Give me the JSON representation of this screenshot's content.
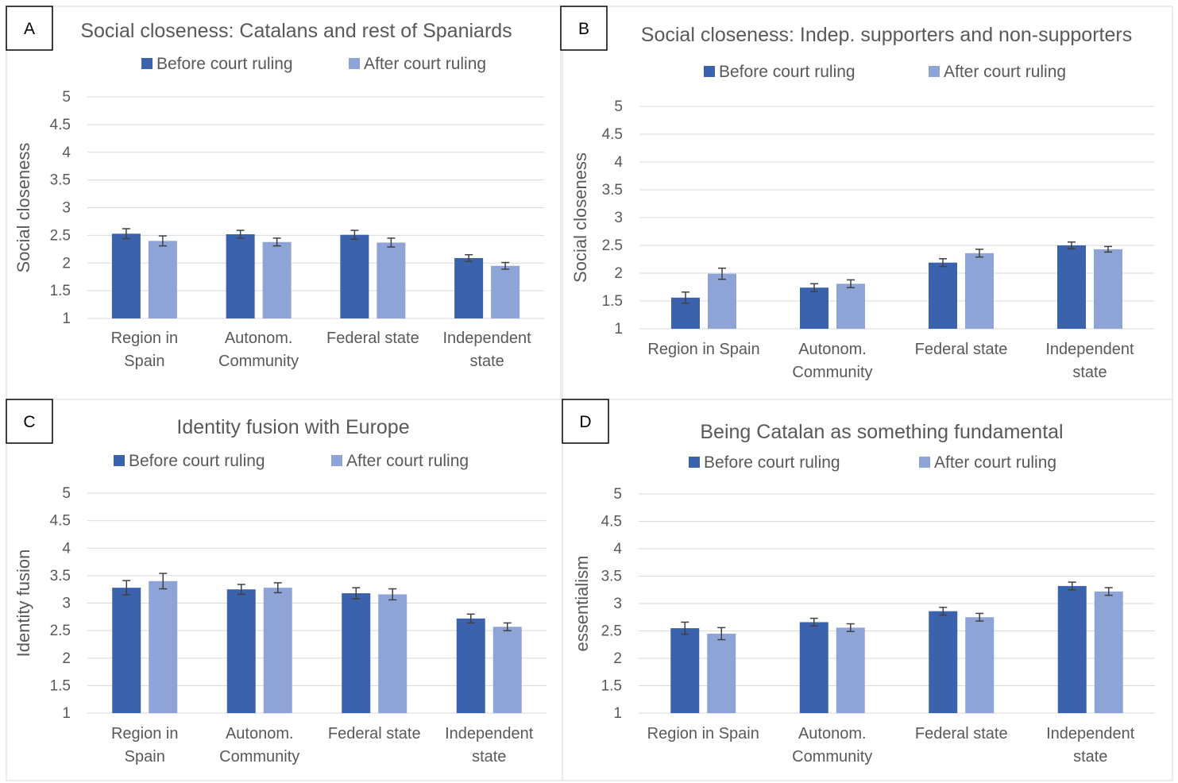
{
  "colors": {
    "before": "#3b62ad",
    "after": "#8ea4d6",
    "grid": "#d9d9d9",
    "text": "#595959",
    "error": "#404040"
  },
  "chart_data": [
    {
      "panel": "A",
      "type": "bar",
      "title": "Social closeness: Catalans and rest of Spaniards",
      "ylabel": "Social closeness",
      "xlabel": "",
      "ylim": [
        1,
        5
      ],
      "yticks": [
        "1",
        "1.5",
        "2",
        "2.5",
        "3",
        "3.5",
        "4",
        "4.5",
        "5"
      ],
      "grid": true,
      "legend_position": "top",
      "categories": [
        [
          "Region in",
          "Spain"
        ],
        [
          "Autonom.",
          "Community"
        ],
        [
          "Federal state"
        ],
        [
          "Independent",
          "state"
        ]
      ],
      "series": [
        {
          "name": "Before court ruling",
          "values": [
            2.53,
            2.52,
            2.51,
            2.09
          ],
          "errors": [
            0.09,
            0.07,
            0.08,
            0.06
          ]
        },
        {
          "name": "After court ruling",
          "values": [
            2.4,
            2.38,
            2.37,
            1.95
          ],
          "errors": [
            0.09,
            0.07,
            0.08,
            0.06
          ]
        }
      ]
    },
    {
      "panel": "B",
      "type": "bar",
      "title": "Social closeness: Indep. supporters and non-supporters",
      "ylabel": "Social closeness",
      "xlabel": "",
      "ylim": [
        1,
        5
      ],
      "yticks": [
        "1",
        "1.5",
        "2",
        "2.5",
        "3",
        "3.5",
        "4",
        "4.5",
        "5"
      ],
      "grid": true,
      "legend_position": "top",
      "categories": [
        [
          "Region in Spain"
        ],
        [
          "Autonom.",
          "Community"
        ],
        [
          "Federal state"
        ],
        [
          "Independent",
          "state"
        ]
      ],
      "series": [
        {
          "name": "Before court ruling",
          "values": [
            1.56,
            1.74,
            2.19,
            2.5
          ],
          "errors": [
            0.1,
            0.07,
            0.07,
            0.06
          ]
        },
        {
          "name": "After court ruling",
          "values": [
            1.99,
            1.81,
            2.36,
            2.43
          ],
          "errors": [
            0.1,
            0.07,
            0.07,
            0.05
          ]
        }
      ]
    },
    {
      "panel": "C",
      "type": "bar",
      "title": "Identity fusion with Europe",
      "ylabel": "Identity fusion",
      "xlabel": "",
      "ylim": [
        1,
        5
      ],
      "yticks": [
        "1",
        "1.5",
        "2",
        "2.5",
        "3",
        "3.5",
        "4",
        "4.5",
        "5"
      ],
      "grid": true,
      "legend_position": "top",
      "categories": [
        [
          "Region in",
          "Spain"
        ],
        [
          "Autonom.",
          "Community"
        ],
        [
          "Federal state"
        ],
        [
          "Independent",
          "state"
        ]
      ],
      "series": [
        {
          "name": "Before court ruling",
          "values": [
            3.28,
            3.25,
            3.18,
            2.72
          ],
          "errors": [
            0.13,
            0.09,
            0.1,
            0.08
          ]
        },
        {
          "name": "After court ruling",
          "values": [
            3.4,
            3.28,
            3.16,
            2.57
          ],
          "errors": [
            0.14,
            0.09,
            0.1,
            0.07
          ]
        }
      ]
    },
    {
      "panel": "D",
      "type": "bar",
      "title": "Being Catalan as something fundamental",
      "ylabel": "essentialism",
      "xlabel": "",
      "ylim": [
        1,
        5
      ],
      "yticks": [
        "1",
        "1.5",
        "2",
        "2.5",
        "3",
        "3.5",
        "4",
        "4.5",
        "5"
      ],
      "grid": true,
      "legend_position": "top",
      "categories": [
        [
          "Region in Spain"
        ],
        [
          "Autonom.",
          "Community"
        ],
        [
          "Federal state"
        ],
        [
          "Independent",
          "state"
        ]
      ],
      "series": [
        {
          "name": "Before court ruling",
          "values": [
            2.55,
            2.66,
            2.86,
            3.32
          ],
          "errors": [
            0.11,
            0.07,
            0.07,
            0.07
          ]
        },
        {
          "name": "After court ruling",
          "values": [
            2.45,
            2.56,
            2.75,
            3.22
          ],
          "errors": [
            0.11,
            0.07,
            0.07,
            0.07
          ]
        }
      ]
    }
  ]
}
